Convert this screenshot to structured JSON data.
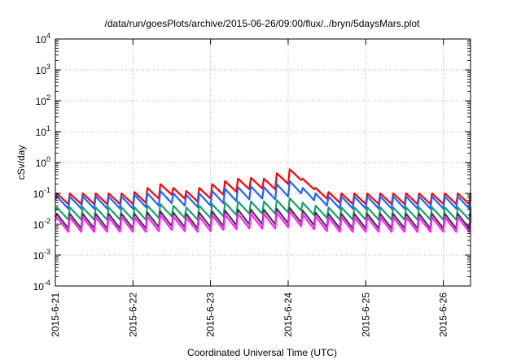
{
  "chart_data": {
    "type": "line",
    "title": "/data/run/goesPlots/archive/2015-06-26/09:00/flux/../bryn/5daysMars.plot",
    "xlabel": "Coordinated Universal Time (UTC)",
    "ylabel": "cSv/day",
    "yscale": "log",
    "ylim_exponents": [
      -4,
      4
    ],
    "ytick_base": "10",
    "ytick_exponents": [
      "-4",
      "-3",
      "-2",
      "-1",
      "0",
      "1",
      "2",
      "3",
      "4"
    ],
    "xlim_days": [
      0,
      5.35
    ],
    "xticks": [
      {
        "day": 0,
        "label": "2015-6-21"
      },
      {
        "day": 1,
        "label": "2015-6-22"
      },
      {
        "day": 2,
        "label": "2015-6-23"
      },
      {
        "day": 3,
        "label": "2015-6-24"
      },
      {
        "day": 4,
        "label": "2015-6-25"
      },
      {
        "day": 5,
        "label": "2015-6-26"
      }
    ],
    "grid": true,
    "cycle_period_hours": 4,
    "series": [
      {
        "color": "#ff0000",
        "peaks": [
          0.1,
          0.1,
          0.1,
          0.1,
          0.1,
          0.1,
          0.11,
          0.15,
          0.2,
          0.15,
          0.12,
          0.15,
          0.2,
          0.25,
          0.3,
          0.32,
          0.3,
          0.45,
          0.6,
          0.3,
          0.15,
          0.11,
          0.1,
          0.1,
          0.1,
          0.1,
          0.1,
          0.1,
          0.1,
          0.1,
          0.1,
          0.1,
          0.1,
          0.1,
          0.1,
          0.1,
          0.1,
          0.1,
          0.1,
          0.1,
          0.1,
          0.1,
          0.1,
          0.1,
          0.1,
          0.1,
          0.1,
          0.1,
          0.1,
          0.1,
          0.1,
          0.1,
          0.1,
          0.1,
          0.1,
          0.1,
          0.1,
          0.1,
          0.1,
          0.1,
          0.1,
          0.1,
          0.1,
          0.1,
          0.1,
          0.1,
          0.1,
          0.1,
          0.1,
          0.1,
          0.1,
          0.1,
          0.1,
          0.1,
          0.1,
          0.1,
          0.1,
          0.1,
          0.1,
          0.1,
          0.1,
          0.1
        ],
        "decay_ratio": 0.45
      },
      {
        "color": "#1e64ff",
        "peaks": [
          0.08,
          0.08,
          0.08,
          0.08,
          0.08,
          0.08,
          0.09,
          0.1,
          0.12,
          0.1,
          0.09,
          0.1,
          0.12,
          0.14,
          0.16,
          0.17,
          0.16,
          0.2,
          0.25,
          0.15,
          0.1,
          0.08,
          0.08,
          0.08,
          0.08,
          0.08,
          0.08,
          0.08,
          0.08,
          0.08,
          0.08,
          0.08,
          0.08,
          0.08,
          0.08,
          0.08,
          0.08,
          0.08,
          0.08,
          0.08,
          0.08,
          0.08,
          0.08,
          0.08,
          0.08,
          0.08,
          0.08,
          0.08,
          0.08,
          0.08,
          0.08,
          0.08,
          0.08,
          0.08,
          0.08,
          0.08,
          0.08,
          0.08,
          0.08,
          0.08,
          0.08,
          0.08,
          0.08,
          0.08,
          0.08,
          0.08,
          0.08,
          0.08,
          0.08,
          0.08,
          0.08,
          0.08,
          0.08,
          0.08,
          0.08,
          0.08,
          0.08,
          0.08,
          0.08,
          0.08,
          0.08,
          0.08
        ],
        "decay_ratio": 0.4
      },
      {
        "color": "#1a9f6f",
        "peaks": [
          0.035,
          0.035,
          0.035,
          0.035,
          0.035,
          0.035,
          0.035,
          0.04,
          0.045,
          0.04,
          0.035,
          0.04,
          0.045,
          0.05,
          0.055,
          0.055,
          0.055,
          0.06,
          0.07,
          0.05,
          0.04,
          0.035,
          0.035,
          0.035,
          0.035,
          0.035,
          0.035,
          0.035,
          0.035,
          0.035,
          0.035,
          0.035,
          0.035,
          0.035,
          0.035,
          0.035,
          0.035,
          0.035,
          0.035,
          0.035,
          0.035,
          0.035,
          0.035,
          0.035,
          0.035,
          0.035,
          0.035,
          0.035,
          0.035,
          0.035,
          0.035,
          0.035,
          0.035,
          0.035,
          0.035,
          0.035,
          0.035,
          0.035,
          0.035,
          0.035,
          0.035,
          0.035,
          0.035,
          0.035,
          0.035,
          0.035,
          0.035,
          0.035,
          0.035,
          0.035,
          0.035,
          0.035,
          0.035,
          0.035,
          0.035,
          0.035,
          0.035,
          0.035,
          0.035,
          0.035,
          0.035,
          0.035
        ],
        "decay_ratio": 0.4
      },
      {
        "color": "#404040",
        "peaks": [
          0.022,
          0.022,
          0.022,
          0.022,
          0.022,
          0.022,
          0.022,
          0.024,
          0.026,
          0.024,
          0.022,
          0.024,
          0.026,
          0.028,
          0.03,
          0.03,
          0.03,
          0.032,
          0.034,
          0.028,
          0.024,
          0.022,
          0.022,
          0.022,
          0.022,
          0.022,
          0.022,
          0.022,
          0.022,
          0.022,
          0.022,
          0.022,
          0.022,
          0.022,
          0.022,
          0.022,
          0.022,
          0.022,
          0.022,
          0.022,
          0.022,
          0.022,
          0.022,
          0.022,
          0.022,
          0.022,
          0.022,
          0.022,
          0.022,
          0.022,
          0.022,
          0.022,
          0.022,
          0.022,
          0.022,
          0.022,
          0.022,
          0.022,
          0.022,
          0.022,
          0.022,
          0.022,
          0.022,
          0.022,
          0.022,
          0.022,
          0.022,
          0.022,
          0.022,
          0.022,
          0.022,
          0.022,
          0.022,
          0.022,
          0.022,
          0.022,
          0.022,
          0.022,
          0.022,
          0.022,
          0.022,
          0.022
        ],
        "decay_ratio": 0.33
      },
      {
        "color": "#ff1eff",
        "peaks": [
          0.017,
          0.017,
          0.017,
          0.017,
          0.017,
          0.017,
          0.017,
          0.018,
          0.02,
          0.018,
          0.017,
          0.018,
          0.02,
          0.021,
          0.022,
          0.022,
          0.022,
          0.024,
          0.026,
          0.021,
          0.018,
          0.017,
          0.017,
          0.017,
          0.017,
          0.017,
          0.017,
          0.017,
          0.017,
          0.017,
          0.017,
          0.017,
          0.017,
          0.017,
          0.017,
          0.017,
          0.017,
          0.017,
          0.017,
          0.017,
          0.017,
          0.017,
          0.017,
          0.017,
          0.017,
          0.017,
          0.017,
          0.017,
          0.017,
          0.017,
          0.017,
          0.017,
          0.017,
          0.017,
          0.017,
          0.017,
          0.017,
          0.017,
          0.017,
          0.017,
          0.017,
          0.017,
          0.017,
          0.017,
          0.017,
          0.017,
          0.017,
          0.017,
          0.017,
          0.017,
          0.017,
          0.017,
          0.017,
          0.017,
          0.017,
          0.017,
          0.017,
          0.017,
          0.017,
          0.017,
          0.017,
          0.017
        ],
        "decay_ratio": 0.33
      }
    ]
  }
}
